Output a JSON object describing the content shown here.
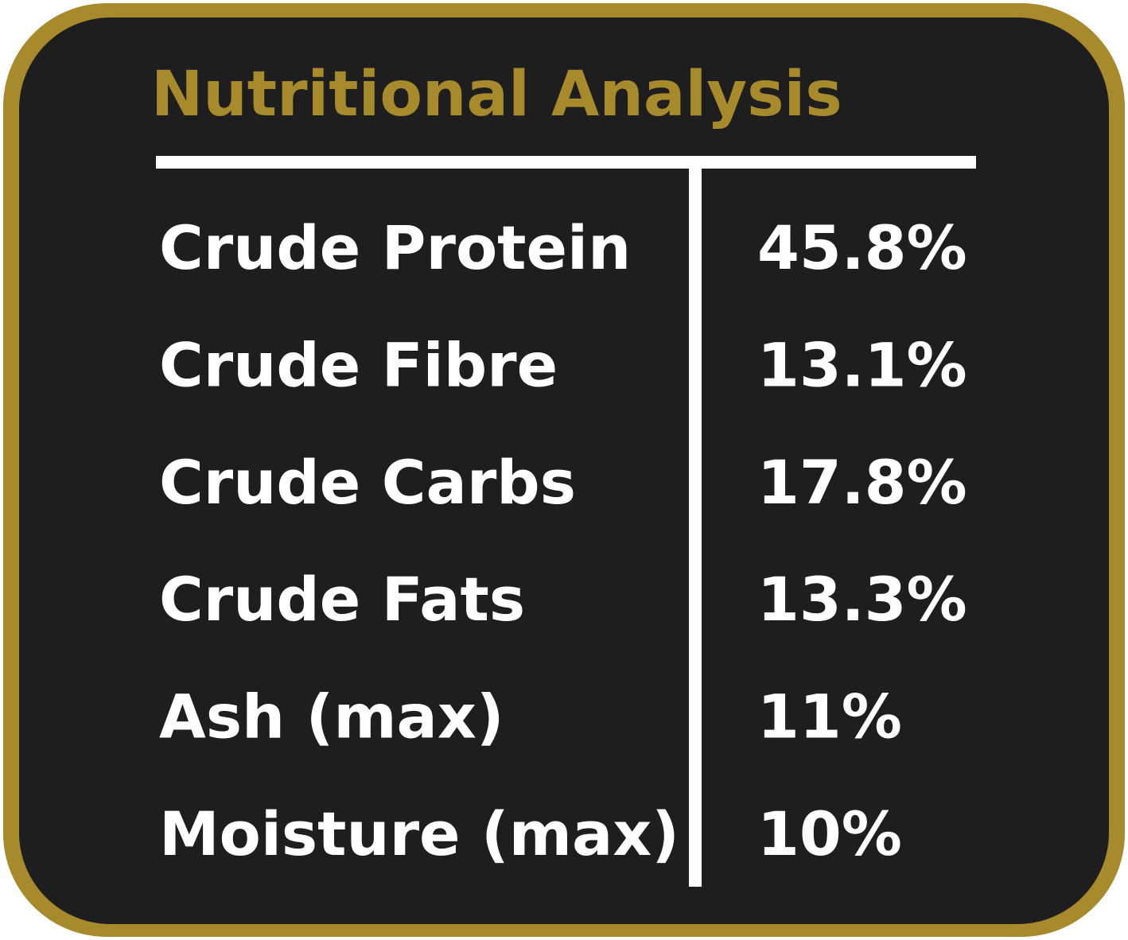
{
  "header": {
    "title": "Nutritional Analysis"
  },
  "table": {
    "rows": [
      [
        "Crude Protein",
        "45.8%"
      ],
      [
        "Crude Fibre",
        "13.1%"
      ],
      [
        "Crude Carbs",
        "17.8%"
      ],
      [
        "Crude Fats",
        "13.3%"
      ],
      [
        "Ash (max)",
        "11%"
      ],
      [
        "Moisture (max)",
        "10%"
      ]
    ]
  }
}
